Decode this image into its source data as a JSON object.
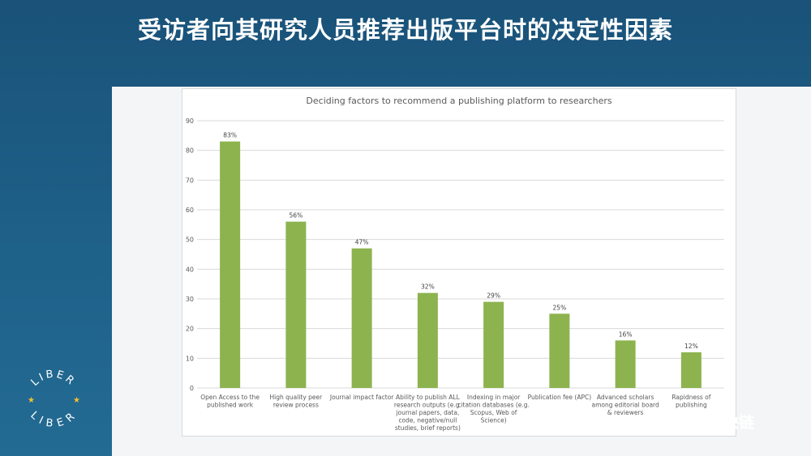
{
  "slide": {
    "title": "受访者向其研究人员推荐出版平台时的决定性因素",
    "watermark": "开放科学区块链",
    "logo_text": [
      "LIBER",
      "LIBER"
    ]
  },
  "colors": {
    "bar": "#8db34f",
    "grid": "#d9d9d9",
    "axis_text": "#595959"
  },
  "chart_data": {
    "type": "bar",
    "title": "Deciding factors to recommend a publishing platform to researchers",
    "ylim": [
      0,
      90
    ],
    "yticks": [
      0,
      10,
      20,
      30,
      40,
      50,
      60,
      70,
      80,
      90
    ],
    "grid": true,
    "categories": [
      [
        "Open Access to the",
        "published work"
      ],
      [
        "High quality peer",
        "review process"
      ],
      [
        "Journal impact factor"
      ],
      [
        "Ability to publish ALL",
        "research outputs (e.g.",
        "journal papers, data,",
        "code, negative/null",
        "studies, brief reports)"
      ],
      [
        "Indexing in major",
        "citation databases (e.g.",
        "Scopus, Web of",
        "Science)"
      ],
      [
        "Publication fee (APC)"
      ],
      [
        "Advanced scholars",
        "among editorial board",
        "& reviewers"
      ],
      [
        "Rapidness of",
        "publishing"
      ]
    ],
    "values": [
      83,
      56,
      47,
      32,
      29,
      25,
      16,
      12
    ],
    "labels": [
      "83%",
      "56%",
      "47%",
      "32%",
      "29%",
      "25%",
      "16%",
      "12%"
    ]
  }
}
